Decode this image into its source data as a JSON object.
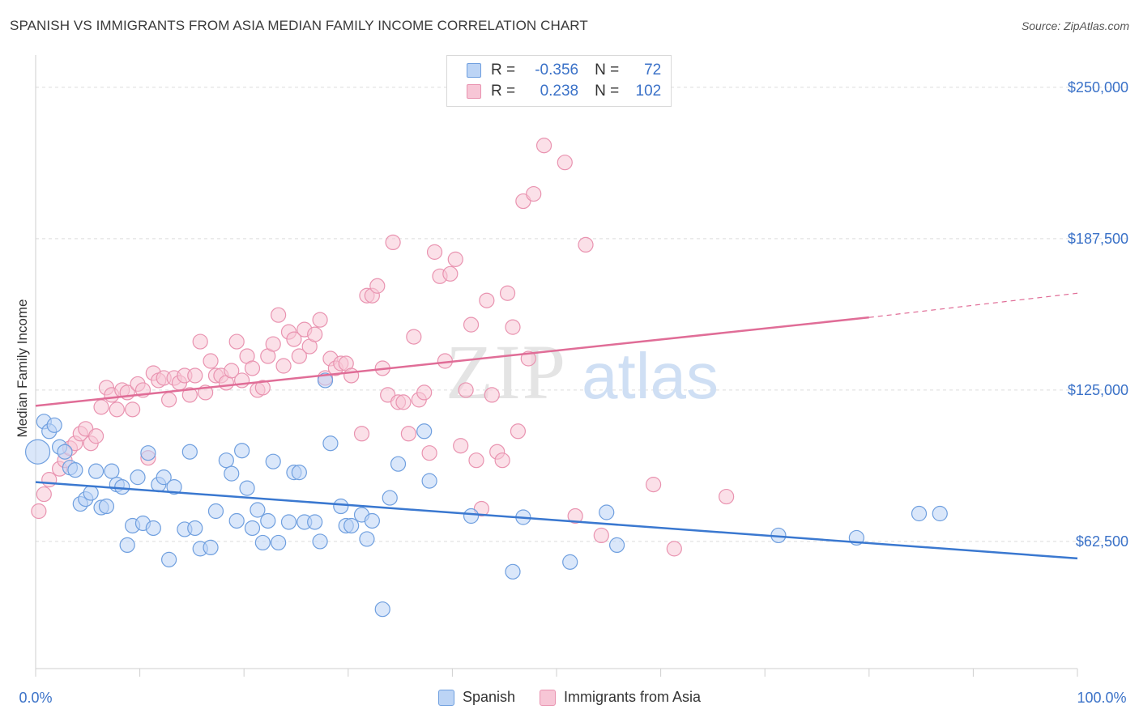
{
  "title": "SPANISH VS IMMIGRANTS FROM ASIA MEDIAN FAMILY INCOME CORRELATION CHART",
  "source": "Source: ZipAtlas.com",
  "watermark": {
    "zip": "ZIP",
    "atlas": "atlas"
  },
  "legend_top": {
    "rows": [
      {
        "r_label": "R =",
        "r_value": "-0.356",
        "n_label": "N =",
        "n_value": "72"
      },
      {
        "r_label": "R =",
        "r_value": "0.238",
        "n_label": "N =",
        "n_value": "102"
      }
    ]
  },
  "colors": {
    "blue_fill": "#bcd4f5",
    "blue_stroke": "#6f9fdf",
    "blue_line": "#3a78d0",
    "pink_fill": "#f7c6d6",
    "pink_stroke": "#e993b0",
    "pink_line": "#e06d97",
    "axis_label": "#3b72c8",
    "grid": "#dcdcdc"
  },
  "chart_data": {
    "type": "scatter",
    "xlabel": "",
    "ylabel": "Median Family Income",
    "xlim": [
      0,
      100
    ],
    "ylim": [
      10000,
      260000
    ],
    "x_tick_labels": [
      "0.0%",
      "100.0%"
    ],
    "y_ticks": [
      62500,
      125000,
      187500,
      250000
    ],
    "y_tick_labels": [
      "$62,500",
      "$125,000",
      "$187,500",
      "$250,000"
    ],
    "grid": true,
    "legend_position": "bottom",
    "series": [
      {
        "name": "Spanish",
        "color": "blue",
        "trend": {
          "x0": 0,
          "y0": 87000,
          "x1": 100,
          "y1": 55500
        },
        "points": [
          [
            0.2,
            99500
          ],
          [
            0.8,
            112000
          ],
          [
            1.3,
            108000
          ],
          [
            1.8,
            110500
          ],
          [
            2.3,
            101500
          ],
          [
            2.8,
            99500
          ],
          [
            3.3,
            93000
          ],
          [
            3.8,
            92000
          ],
          [
            4.3,
            78000
          ],
          [
            4.8,
            80000
          ],
          [
            5.3,
            82500
          ],
          [
            5.8,
            91500
          ],
          [
            6.3,
            76500
          ],
          [
            6.8,
            77000
          ],
          [
            7.3,
            91500
          ],
          [
            7.8,
            86000
          ],
          [
            8.3,
            85000
          ],
          [
            8.8,
            61000
          ],
          [
            9.3,
            69000
          ],
          [
            9.8,
            89000
          ],
          [
            10.3,
            70000
          ],
          [
            10.8,
            99000
          ],
          [
            11.3,
            68000
          ],
          [
            11.8,
            86000
          ],
          [
            12.3,
            89000
          ],
          [
            12.8,
            55000
          ],
          [
            13.3,
            85000
          ],
          [
            14.3,
            67500
          ],
          [
            14.8,
            99500
          ],
          [
            15.3,
            68000
          ],
          [
            15.8,
            59500
          ],
          [
            16.8,
            60000
          ],
          [
            17.3,
            75000
          ],
          [
            18.3,
            96000
          ],
          [
            18.8,
            90500
          ],
          [
            19.3,
            71000
          ],
          [
            19.8,
            100000
          ],
          [
            20.3,
            84500
          ],
          [
            20.8,
            68000
          ],
          [
            21.3,
            75500
          ],
          [
            21.8,
            62000
          ],
          [
            22.3,
            71000
          ],
          [
            23.3,
            62000
          ],
          [
            22.8,
            95500
          ],
          [
            24.3,
            70500
          ],
          [
            24.8,
            91000
          ],
          [
            25.3,
            91000
          ],
          [
            25.8,
            70500
          ],
          [
            26.8,
            70500
          ],
          [
            27.3,
            62500
          ],
          [
            27.8,
            129000
          ],
          [
            28.3,
            103000
          ],
          [
            29.3,
            77000
          ],
          [
            29.8,
            69000
          ],
          [
            30.3,
            69000
          ],
          [
            31.3,
            73500
          ],
          [
            31.8,
            63500
          ],
          [
            32.3,
            71000
          ],
          [
            33.3,
            34500
          ],
          [
            34.0,
            80500
          ],
          [
            34.8,
            94500
          ],
          [
            37.3,
            108000
          ],
          [
            37.8,
            87500
          ],
          [
            41.8,
            73000
          ],
          [
            45.8,
            50000
          ],
          [
            46.8,
            72500
          ],
          [
            51.3,
            54000
          ],
          [
            54.8,
            74500
          ],
          [
            55.8,
            61000
          ],
          [
            71.3,
            65000
          ],
          [
            78.8,
            64000
          ],
          [
            84.8,
            74000
          ],
          [
            86.8,
            74000
          ]
        ],
        "point_sizes": [
          30
        ]
      },
      {
        "name": "Immigrants from Asia",
        "color": "pink",
        "trend": {
          "x0": 0,
          "y0": 118500,
          "x1": 80,
          "y1": 155000
        },
        "trend_dashed_to": {
          "x": 100,
          "y": 165000
        },
        "points": [
          [
            0.3,
            75000
          ],
          [
            0.8,
            82000
          ],
          [
            1.3,
            88000
          ],
          [
            2.3,
            92500
          ],
          [
            2.8,
            96000
          ],
          [
            3.3,
            101000
          ],
          [
            3.8,
            103000
          ],
          [
            4.3,
            107000
          ],
          [
            4.8,
            109000
          ],
          [
            5.3,
            103000
          ],
          [
            5.8,
            106000
          ],
          [
            6.3,
            118000
          ],
          [
            6.8,
            126000
          ],
          [
            7.3,
            123000
          ],
          [
            7.8,
            117000
          ],
          [
            8.3,
            125000
          ],
          [
            8.8,
            124000
          ],
          [
            9.3,
            117000
          ],
          [
            9.8,
            127500
          ],
          [
            10.3,
            125000
          ],
          [
            10.8,
            97000
          ],
          [
            11.3,
            132000
          ],
          [
            11.8,
            129000
          ],
          [
            12.3,
            130000
          ],
          [
            12.8,
            121000
          ],
          [
            13.3,
            130000
          ],
          [
            13.8,
            128000
          ],
          [
            14.3,
            131000
          ],
          [
            14.8,
            123000
          ],
          [
            15.3,
            131000
          ],
          [
            15.8,
            145000
          ],
          [
            16.3,
            124000
          ],
          [
            16.8,
            137000
          ],
          [
            17.3,
            131000
          ],
          [
            17.8,
            131000
          ],
          [
            18.3,
            128000
          ],
          [
            18.8,
            133000
          ],
          [
            19.3,
            145000
          ],
          [
            19.8,
            129000
          ],
          [
            20.3,
            139000
          ],
          [
            20.8,
            134000
          ],
          [
            21.3,
            125000
          ],
          [
            21.8,
            126000
          ],
          [
            22.3,
            139000
          ],
          [
            22.8,
            144000
          ],
          [
            23.3,
            156000
          ],
          [
            23.8,
            135000
          ],
          [
            24.3,
            149000
          ],
          [
            24.8,
            146000
          ],
          [
            25.3,
            139000
          ],
          [
            25.8,
            150000
          ],
          [
            26.3,
            143000
          ],
          [
            26.8,
            148000
          ],
          [
            27.3,
            154000
          ],
          [
            27.8,
            130000
          ],
          [
            28.3,
            138000
          ],
          [
            28.8,
            134000
          ],
          [
            29.3,
            136000
          ],
          [
            29.8,
            136000
          ],
          [
            30.3,
            131000
          ],
          [
            31.3,
            107000
          ],
          [
            31.8,
            164000
          ],
          [
            32.3,
            164000
          ],
          [
            32.8,
            168000
          ],
          [
            33.3,
            134000
          ],
          [
            33.8,
            123000
          ],
          [
            34.3,
            186000
          ],
          [
            34.8,
            120000
          ],
          [
            35.3,
            120000
          ],
          [
            35.8,
            107000
          ],
          [
            36.3,
            147000
          ],
          [
            36.8,
            121000
          ],
          [
            37.3,
            124000
          ],
          [
            37.8,
            99000
          ],
          [
            38.3,
            182000
          ],
          [
            38.8,
            172000
          ],
          [
            39.3,
            137000
          ],
          [
            39.8,
            173000
          ],
          [
            40.3,
            179000
          ],
          [
            40.8,
            102000
          ],
          [
            41.3,
            125000
          ],
          [
            41.8,
            152000
          ],
          [
            42.3,
            96000
          ],
          [
            42.8,
            76000
          ],
          [
            43.3,
            162000
          ],
          [
            43.8,
            123000
          ],
          [
            44.3,
            99500
          ],
          [
            44.8,
            96000
          ],
          [
            45.3,
            165000
          ],
          [
            45.8,
            151000
          ],
          [
            46.3,
            108000
          ],
          [
            46.8,
            203000
          ],
          [
            47.3,
            138000
          ],
          [
            47.8,
            206000
          ],
          [
            48.8,
            226000
          ],
          [
            50.8,
            219000
          ],
          [
            51.8,
            73000
          ],
          [
            52.8,
            185000
          ],
          [
            54.3,
            65000
          ],
          [
            59.3,
            86000
          ],
          [
            61.3,
            59500
          ],
          [
            66.3,
            81000
          ]
        ]
      }
    ]
  },
  "bottom_legend": [
    "Spanish",
    "Immigrants from Asia"
  ]
}
